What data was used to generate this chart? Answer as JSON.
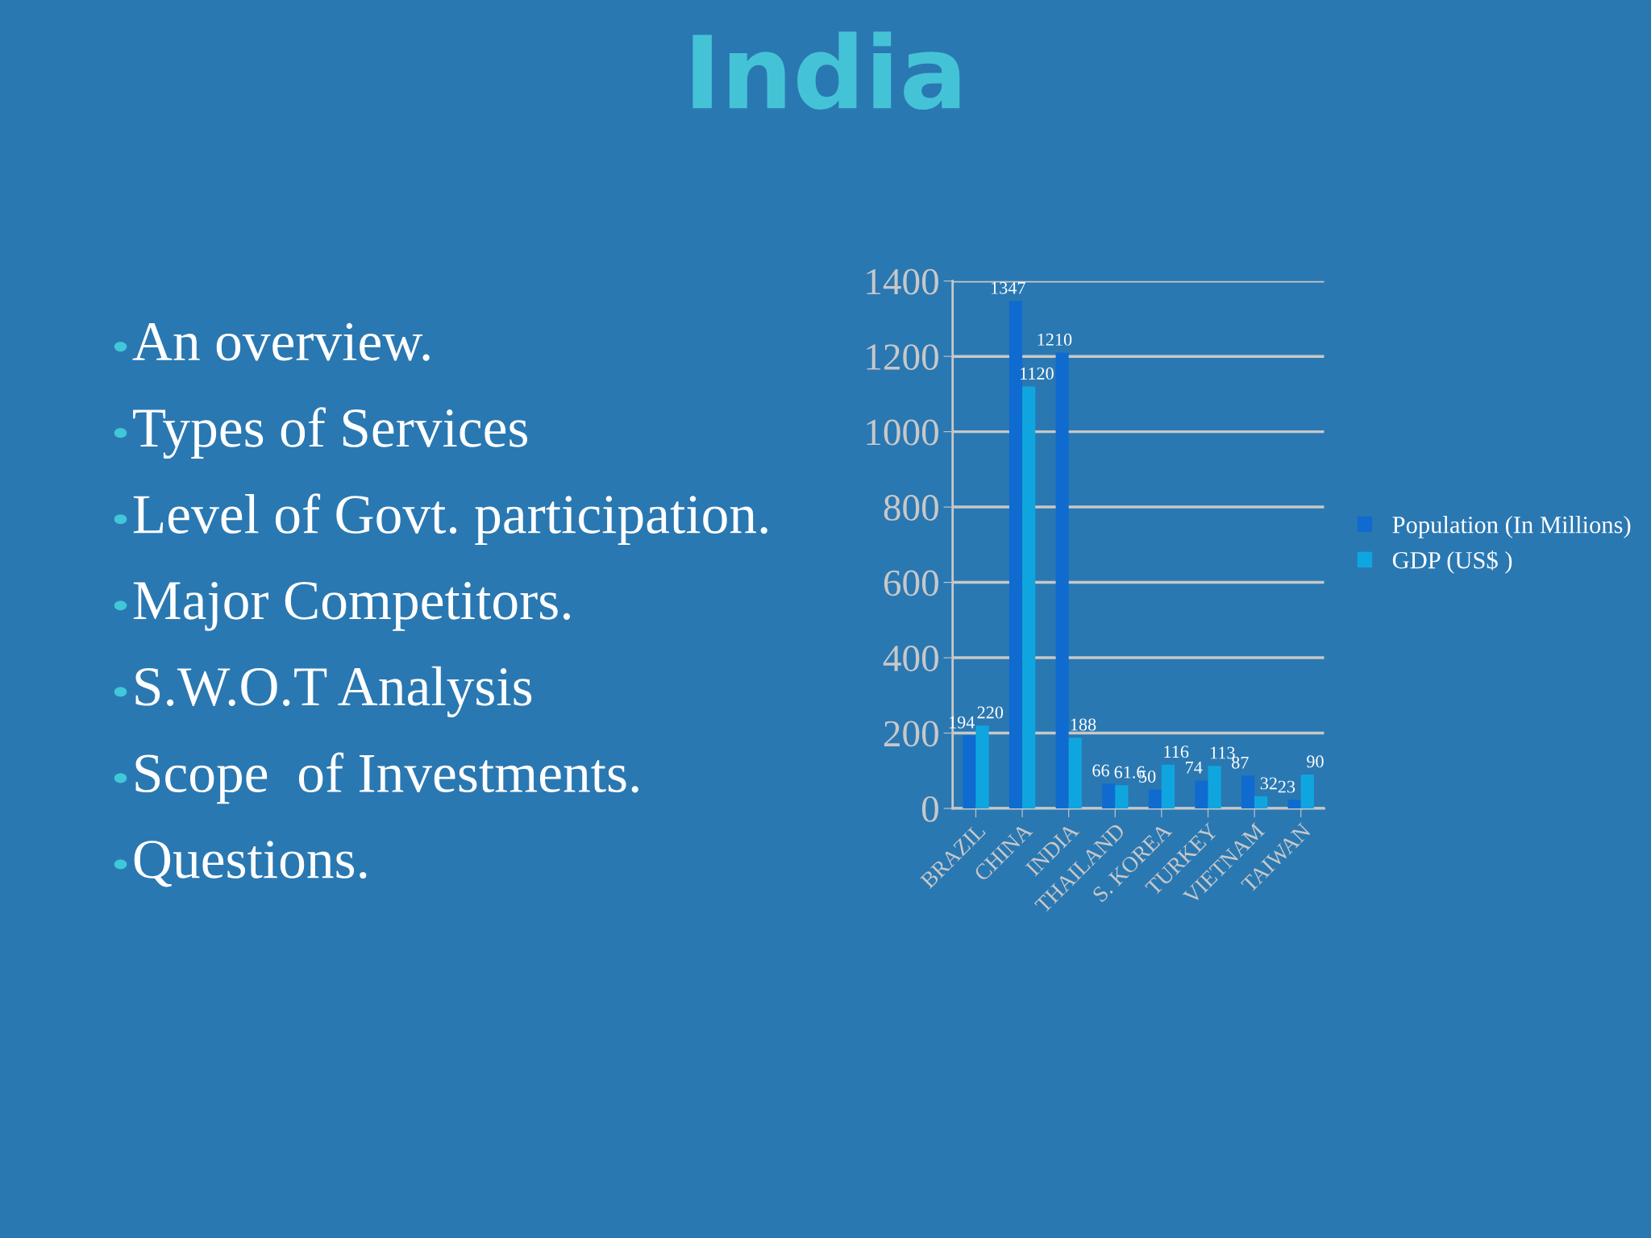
{
  "chart_data": {
    "type": "bar",
    "title": "India",
    "annotations": [
      "An overview.",
      "Types of Services",
      "Level of Govt. participation.",
      "Major Competitors.",
      "S.W.O.T Analysis",
      "Scope  of Investments.",
      "Questions."
    ],
    "categories": [
      "BRAZIL",
      "CHINA",
      "INDIA",
      "THAILAND",
      "S. KOREA",
      "TURKEY",
      "VIETNAM",
      "TAIWAN"
    ],
    "series": [
      {
        "name": "Population (In Millions)",
        "color": "#0f6bd0",
        "values": [
          194,
          1347,
          1210,
          66,
          50,
          74,
          87,
          23
        ]
      },
      {
        "name": "GDP (US$ )",
        "color": "#0fa6e0",
        "values": [
          220,
          1120,
          188,
          61.6,
          116,
          113,
          32,
          90
        ]
      }
    ],
    "ylim": [
      0,
      1400
    ],
    "yticks": [
      0,
      200,
      400,
      600,
      800,
      1000,
      1200,
      1400
    ],
    "grid": "y",
    "legend": "right",
    "data_labels": true
  }
}
